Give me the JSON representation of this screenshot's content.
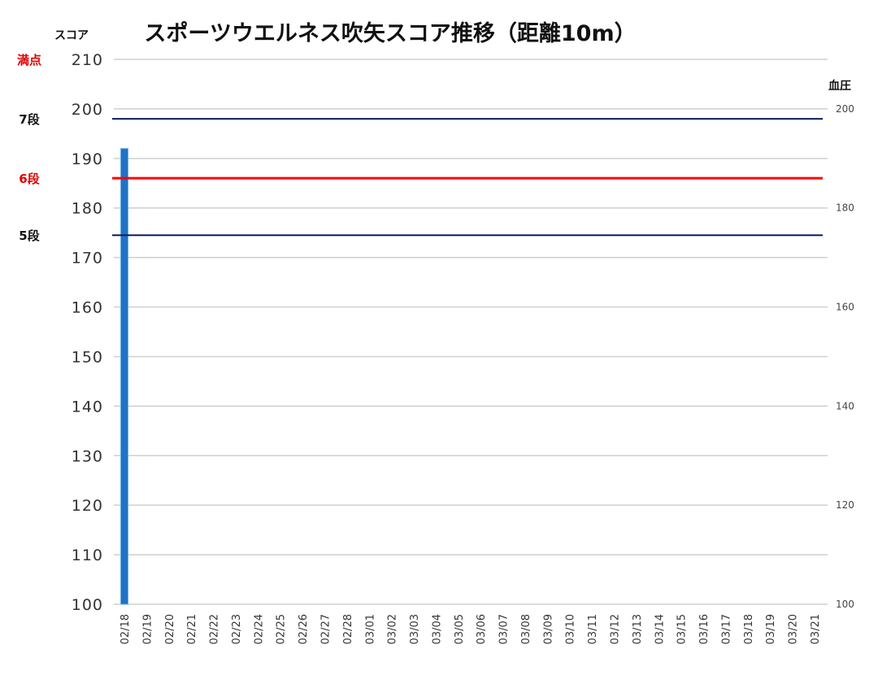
{
  "chart_data": {
    "type": "bar",
    "title": "スポーツウエルネス吹矢スコア推移（距離10m）",
    "ylabel": "スコア",
    "y2label": "血圧",
    "ylim": [
      100,
      210
    ],
    "y2lim": [
      100,
      210
    ],
    "yticks": [
      100,
      110,
      120,
      130,
      140,
      150,
      160,
      170,
      180,
      190,
      200,
      210
    ],
    "y2ticks": [
      100,
      120,
      140,
      160,
      180,
      200
    ],
    "grid": true,
    "categories": [
      "02/18",
      "02/19",
      "02/20",
      "02/21",
      "02/22",
      "02/23",
      "02/24",
      "02/25",
      "02/26",
      "02/27",
      "02/28",
      "03/01",
      "03/02",
      "03/03",
      "03/04",
      "03/05",
      "03/06",
      "03/07",
      "03/08",
      "03/09",
      "03/10",
      "03/11",
      "03/12",
      "03/13",
      "03/14",
      "03/15",
      "03/16",
      "03/17",
      "03/18",
      "03/19",
      "03/20",
      "03/21"
    ],
    "series": [
      {
        "color": "#1f73c4",
        "values": [
          192,
          null,
          null,
          null,
          null,
          null,
          null,
          null,
          null,
          null,
          null,
          null,
          null,
          null,
          null,
          null,
          null,
          null,
          null,
          null,
          null,
          null,
          null,
          null,
          null,
          null,
          null,
          null,
          null,
          null,
          null,
          null
        ]
      }
    ],
    "reference_lines": [
      {
        "label": "満点",
        "value": 210,
        "color": "#e00000",
        "show_line": false
      },
      {
        "label": "7段",
        "value": 198,
        "color": "#0d1b5e",
        "label_color": "#111111",
        "show_line": true
      },
      {
        "label": "6段",
        "value": 186,
        "color": "#ff0000",
        "label_color": "#e00000",
        "show_line": true
      },
      {
        "label": "5段",
        "value": 174.5,
        "color": "#0d1b5e",
        "label_color": "#111111",
        "show_line": true
      }
    ]
  }
}
